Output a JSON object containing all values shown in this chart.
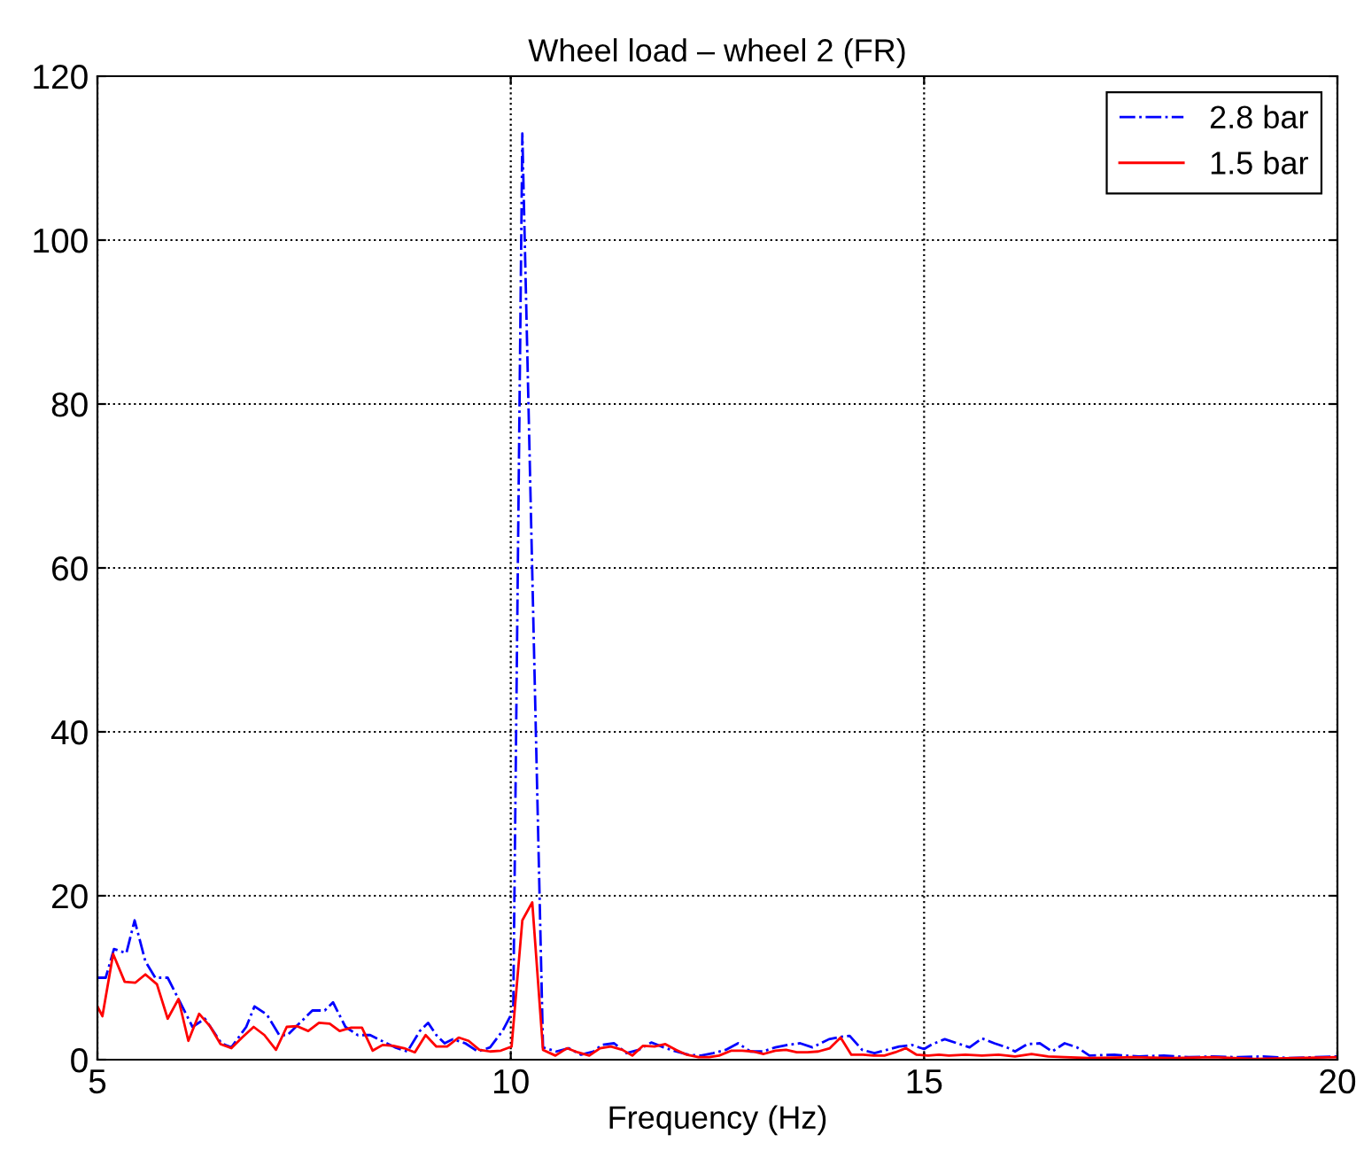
{
  "chart_data": {
    "type": "line",
    "title": "Wheel load – wheel 2 (FR)",
    "xlabel": "Frequency (Hz)",
    "xlim": [
      5,
      20
    ],
    "xticks": [
      5,
      10,
      15,
      20
    ],
    "ylim": [
      0,
      120
    ],
    "yticks": [
      0,
      20,
      40,
      60,
      80,
      100,
      120
    ],
    "grid": true,
    "legend": "top right",
    "series": [
      {
        "name": "2.8 bar",
        "color": "#0000ff",
        "line_style": "dashdot",
        "x": [
          5.0,
          5.1,
          5.2,
          5.35,
          5.45,
          5.58,
          5.7,
          5.85,
          6.0,
          6.15,
          6.3,
          6.5,
          6.62,
          6.8,
          6.9,
          7.05,
          7.2,
          7.3,
          7.5,
          7.6,
          7.75,
          7.85,
          8.0,
          8.15,
          8.3,
          8.5,
          8.6,
          8.75,
          8.9,
          9.0,
          9.1,
          9.2,
          9.3,
          9.45,
          9.6,
          9.75,
          9.9,
          10.03,
          10.14,
          10.39,
          10.55,
          10.7,
          10.85,
          11.0,
          11.1,
          11.25,
          11.4,
          11.55,
          11.7,
          11.85,
          12.0,
          12.15,
          12.3,
          12.45,
          12.6,
          12.75,
          12.9,
          13.05,
          13.2,
          13.35,
          13.5,
          13.65,
          13.85,
          14.0,
          14.1,
          14.25,
          14.4,
          14.55,
          14.7,
          14.85,
          15.0,
          15.1,
          15.25,
          15.4,
          15.55,
          15.7,
          15.85,
          16.0,
          16.1,
          16.25,
          16.4,
          16.55,
          16.7,
          16.85,
          17.0,
          17.3,
          17.6,
          17.9,
          18.2,
          18.5,
          18.8,
          19.1,
          19.4,
          19.7,
          20.0
        ],
        "values": [
          10,
          10,
          13.5,
          13,
          17,
          12,
          10,
          10,
          7,
          4,
          5,
          2,
          1.5,
          4,
          6.5,
          5.5,
          3,
          3,
          5,
          6,
          6,
          7,
          4,
          3,
          3,
          2,
          1.5,
          1,
          3.5,
          4.5,
          3,
          2,
          2.5,
          2,
          1,
          1.5,
          3.5,
          6,
          113,
          1.5,
          1.0,
          1.4,
          0.6,
          1.0,
          1.8,
          2.0,
          0.8,
          1.2,
          2.1,
          1.5,
          1.0,
          0.6,
          0.5,
          0.8,
          1.2,
          2.0,
          1.0,
          1.0,
          1.5,
          1.8,
          2.0,
          1.5,
          2.5,
          2.8,
          2.9,
          1.2,
          0.8,
          1.2,
          1.6,
          1.8,
          1.3,
          1.9,
          2.5,
          2.0,
          1.5,
          2.6,
          2.0,
          1.5,
          1.0,
          1.9,
          2.0,
          1.0,
          2.0,
          1.5,
          0.5,
          0.6,
          0.4,
          0.5,
          0.3,
          0.4,
          0.3,
          0.4,
          0.2,
          0.3,
          0.4
        ]
      },
      {
        "name": "1.5 bar",
        "color": "#ff0000",
        "line_style": "solid",
        "x": [
          5.0,
          5.06,
          5.19,
          5.33,
          5.46,
          5.58,
          5.72,
          5.85,
          5.98,
          6.1,
          6.23,
          6.36,
          6.49,
          6.62,
          6.75,
          6.89,
          7.02,
          7.16,
          7.29,
          7.41,
          7.55,
          7.68,
          7.81,
          7.93,
          8.07,
          8.2,
          8.33,
          8.45,
          8.58,
          8.71,
          8.84,
          8.97,
          9.1,
          9.23,
          9.37,
          9.49,
          9.62,
          9.75,
          9.88,
          10.01,
          10.14,
          10.26,
          10.39,
          10.54,
          10.68,
          10.81,
          10.95,
          11.08,
          11.21,
          11.35,
          11.47,
          11.6,
          11.74,
          11.87,
          12.0,
          12.13,
          12.27,
          12.4,
          12.52,
          12.67,
          12.8,
          12.93,
          13.06,
          13.2,
          13.33,
          13.46,
          13.59,
          13.72,
          13.86,
          13.99,
          14.12,
          14.26,
          14.39,
          14.52,
          14.65,
          14.78,
          14.91,
          15.05,
          15.18,
          15.3,
          15.5,
          15.7,
          15.9,
          16.1,
          16.3,
          16.5,
          16.7,
          17.0,
          17.5,
          18.0,
          18.5,
          19.0,
          19.5,
          20.0
        ],
        "values": [
          6.5,
          5.3,
          12.9,
          9.5,
          9.4,
          10.4,
          9.2,
          5.0,
          7.4,
          2.3,
          5.6,
          4.1,
          1.9,
          1.4,
          2.7,
          4.0,
          3.0,
          1.2,
          4.0,
          4.1,
          3.5,
          4.5,
          4.4,
          3.5,
          3.9,
          3.9,
          1.1,
          1.8,
          1.7,
          1.4,
          0.9,
          3.0,
          1.6,
          1.6,
          2.7,
          2.3,
          1.2,
          1.0,
          1.1,
          1.6,
          17.0,
          19.2,
          1.2,
          0.5,
          1.4,
          0.9,
          0.5,
          1.4,
          1.6,
          1.2,
          0.5,
          1.7,
          1.6,
          1.9,
          1.2,
          0.6,
          0.3,
          0.3,
          0.5,
          1.1,
          1.1,
          1.0,
          0.7,
          1.1,
          1.2,
          0.9,
          0.9,
          1.0,
          1.4,
          2.7,
          0.6,
          0.6,
          0.5,
          0.5,
          0.9,
          1.4,
          0.6,
          0.5,
          0.6,
          0.5,
          0.6,
          0.5,
          0.6,
          0.4,
          0.7,
          0.4,
          0.3,
          0.2,
          0.3,
          0.2,
          0.3,
          0.1,
          0.2,
          0.3
        ]
      }
    ]
  }
}
